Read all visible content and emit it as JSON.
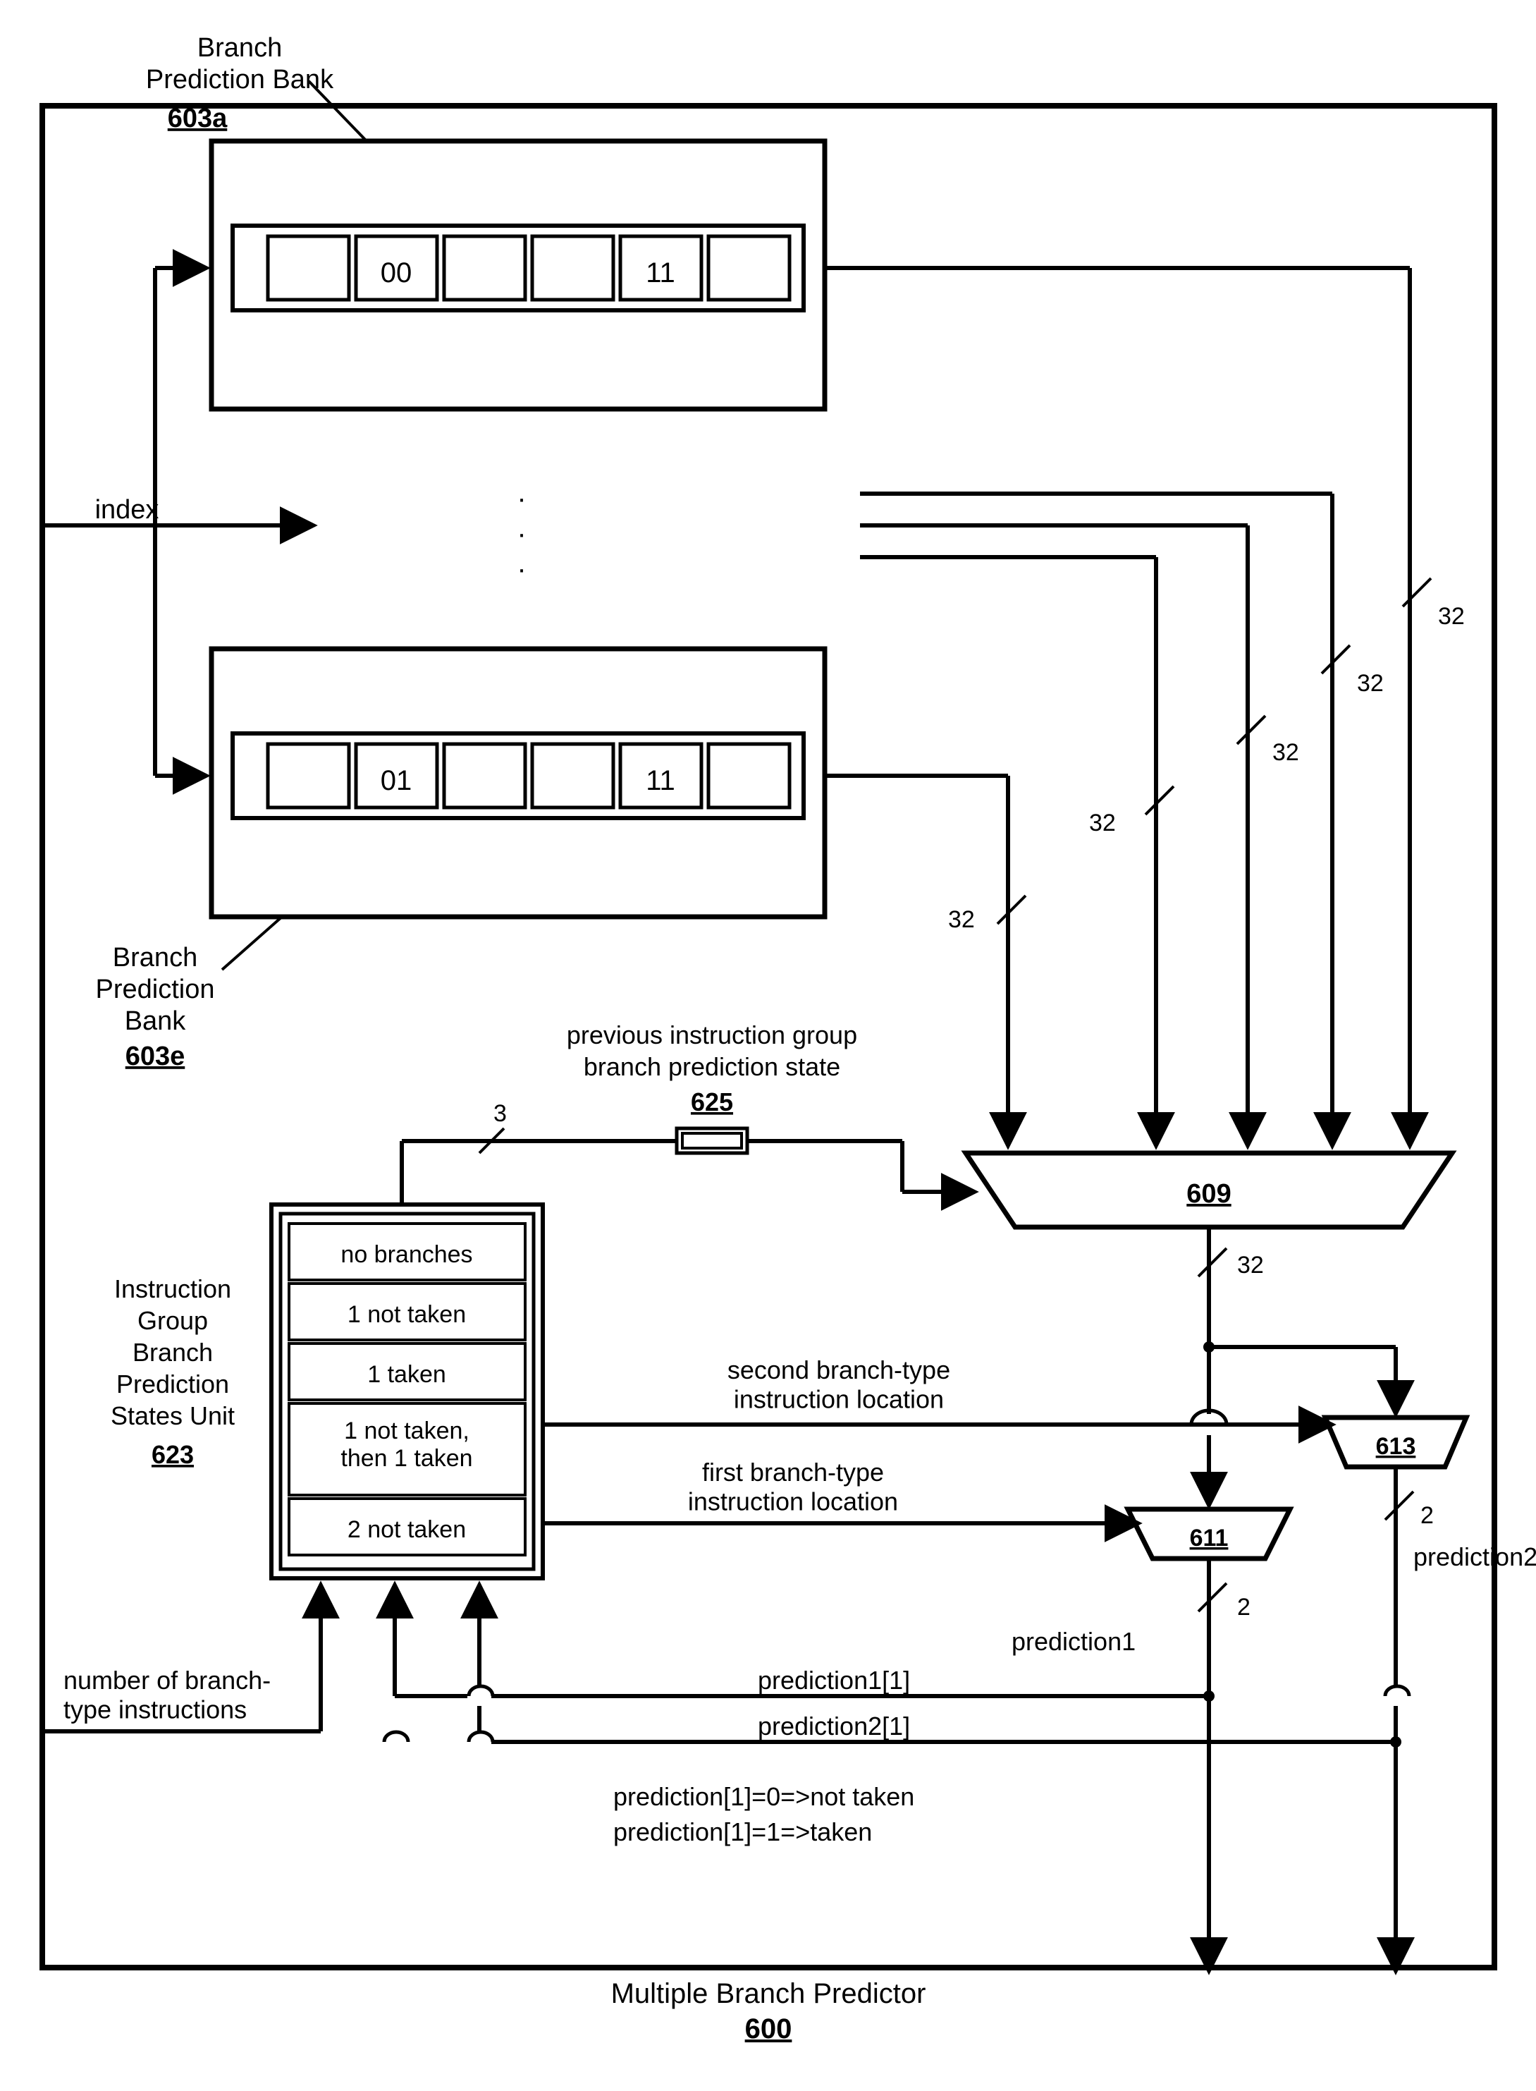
{
  "title": {
    "line1": "Multiple Branch Predictor",
    "ref": "600"
  },
  "bankA": {
    "labelLine1": "Branch",
    "labelLine2": "Prediction Bank",
    "ref": "603a",
    "cells": [
      "",
      "00",
      "",
      "",
      "11",
      ""
    ]
  },
  "bankE": {
    "labelLine1": "Branch",
    "labelLine2": "Prediction",
    "labelLine3": "Bank",
    "ref": "603e",
    "cells": [
      "",
      "01",
      "",
      "",
      "11",
      ""
    ]
  },
  "indexLabel": "index",
  "busWidth32": "32",
  "busWidth3": "3",
  "busWidth2": "2",
  "mux609": {
    "ref": "609"
  },
  "mux611": {
    "ref": "611"
  },
  "mux613": {
    "ref": "613"
  },
  "latch625": {
    "line1": "previous instruction group",
    "line2": "branch prediction state",
    "ref": "625"
  },
  "states623": {
    "labelLine1": "Instruction",
    "labelLine2": "Group",
    "labelLine3": "Branch",
    "labelLine4": "Prediction",
    "labelLine5": "States Unit",
    "ref": "623",
    "rows": [
      "no branches",
      "1 not taken",
      "1 taken",
      "1 not taken,\nthen 1 taken",
      "2 not taken"
    ]
  },
  "labels": {
    "secondLoc": "second branch-type\ninstruction location",
    "firstLoc": "first branch-type\ninstruction location",
    "pred1": "prediction1",
    "pred2": "prediction2",
    "pred1idx": "prediction1[1]",
    "pred2idx": "prediction2[1]",
    "legend1": "prediction[1]=0=>not taken",
    "legend2": "prediction[1]=1=>taken",
    "numBranch": "number of branch-\ntype instructions"
  },
  "style": {
    "stroke": "#000000",
    "strokeThick": 6,
    "strokeThin": 4,
    "fontSize": 32,
    "fontSizeSmall": 30,
    "bg": "#ffffff"
  }
}
